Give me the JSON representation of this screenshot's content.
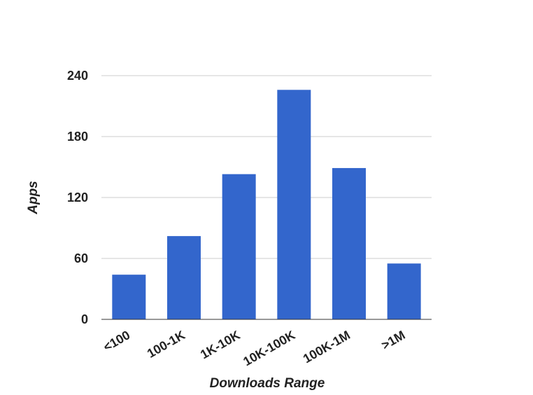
{
  "chart_data": {
    "type": "bar",
    "categories": [
      "<100",
      "100-1K",
      "1K-10K",
      "10K-100K",
      "100K-1M",
      ">1M"
    ],
    "series": [
      {
        "values": [
          44,
          82,
          143,
          226,
          149,
          55
        ],
        "color": "#3366cc"
      }
    ],
    "xlabel": "Downloads Range",
    "ylabel": "Apps",
    "ylim": [
      0,
      240
    ],
    "yticks": [
      0,
      60,
      120,
      180,
      240
    ],
    "ytick_labels": [
      "0",
      "60",
      "120",
      "180",
      "240"
    ],
    "grid": true,
    "legend": "none"
  }
}
